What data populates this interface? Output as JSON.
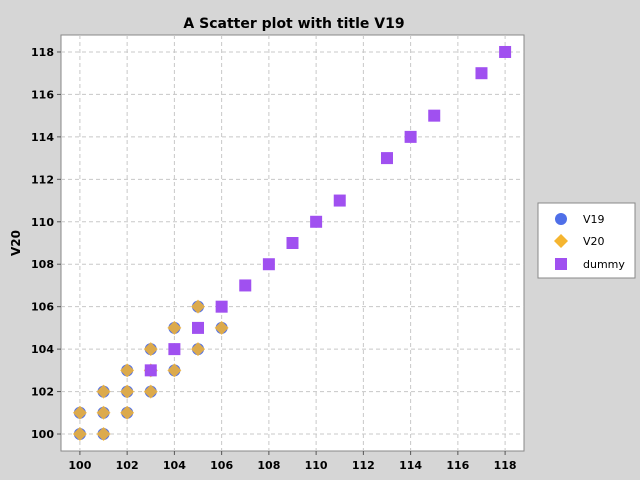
{
  "chart_data": {
    "type": "scatter",
    "title": "A Scatter plot with title V19",
    "xlabel": "",
    "ylabel": "V20",
    "xlim": [
      99.2,
      118.8
    ],
    "ylim": [
      99.2,
      118.8
    ],
    "x_ticks": [
      "100",
      "102",
      "104",
      "106",
      "108",
      "110",
      "112",
      "114",
      "116",
      "118"
    ],
    "y_ticks": [
      "100",
      "102",
      "104",
      "106",
      "108",
      "110",
      "112",
      "114",
      "116",
      "118"
    ],
    "grid": true,
    "legend_position": "right",
    "series": [
      {
        "name": "V19",
        "marker": "circle",
        "color": "#4f6fe8",
        "points": [
          [
            100,
            101
          ],
          [
            100,
            100
          ],
          [
            101,
            102
          ],
          [
            101,
            101
          ],
          [
            101,
            100
          ],
          [
            102,
            103
          ],
          [
            102,
            102
          ],
          [
            102,
            101
          ],
          [
            103,
            104
          ],
          [
            103,
            103
          ],
          [
            103,
            102
          ],
          [
            104,
            105
          ],
          [
            104,
            103
          ],
          [
            105,
            106
          ],
          [
            105,
            104
          ],
          [
            106,
            105
          ]
        ]
      },
      {
        "name": "V20",
        "marker": "diamond",
        "color": "#f5b530",
        "points": [
          [
            100,
            101
          ],
          [
            100,
            100
          ],
          [
            101,
            102
          ],
          [
            101,
            101
          ],
          [
            101,
            100
          ],
          [
            102,
            103
          ],
          [
            102,
            102
          ],
          [
            102,
            101
          ],
          [
            103,
            104
          ],
          [
            103,
            103
          ],
          [
            103,
            102
          ],
          [
            104,
            105
          ],
          [
            104,
            103
          ],
          [
            105,
            106
          ],
          [
            105,
            104
          ],
          [
            106,
            105
          ]
        ]
      },
      {
        "name": "dummy",
        "marker": "square",
        "color": "#a050f0",
        "points": [
          [
            103,
            103
          ],
          [
            104,
            104
          ],
          [
            105,
            105
          ],
          [
            106,
            106
          ],
          [
            107,
            107
          ],
          [
            108,
            108
          ],
          [
            109,
            109
          ],
          [
            110,
            110
          ],
          [
            111,
            111
          ],
          [
            113,
            113
          ],
          [
            114,
            114
          ],
          [
            115,
            115
          ],
          [
            117,
            117
          ],
          [
            118,
            118
          ]
        ]
      }
    ]
  }
}
